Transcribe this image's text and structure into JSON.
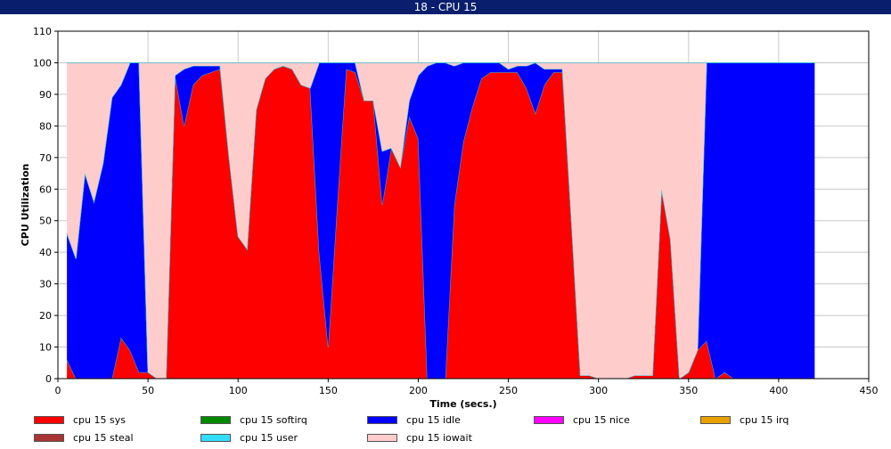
{
  "window": {
    "title": "18 - CPU 15"
  },
  "chart_data": {
    "type": "area",
    "stacked": true,
    "title": "18 - CPU 15",
    "xlabel": "Time (secs.)",
    "ylabel": "CPU Utilization",
    "xlim": [
      0,
      450
    ],
    "ylim": [
      0,
      110
    ],
    "xticks": [
      0,
      50,
      100,
      150,
      200,
      250,
      300,
      350,
      400,
      450
    ],
    "yticks": [
      0,
      10,
      20,
      30,
      40,
      50,
      60,
      70,
      80,
      90,
      100,
      110
    ],
    "grid": true,
    "legend_position": "bottom",
    "x": [
      5,
      10,
      15,
      20,
      25,
      30,
      35,
      40,
      45,
      50,
      55,
      60,
      65,
      70,
      75,
      80,
      85,
      90,
      95,
      100,
      105,
      110,
      115,
      120,
      125,
      130,
      135,
      140,
      145,
      150,
      155,
      160,
      165,
      170,
      175,
      180,
      185,
      190,
      195,
      200,
      205,
      210,
      215,
      220,
      225,
      230,
      235,
      240,
      245,
      250,
      255,
      260,
      265,
      270,
      275,
      280,
      285,
      290,
      295,
      300,
      305,
      310,
      315,
      320,
      325,
      330,
      335,
      340,
      345,
      350,
      355,
      360,
      365,
      370,
      375,
      380,
      385,
      390,
      395,
      400,
      405,
      410,
      415,
      420
    ],
    "series": [
      {
        "name": "cpu 15 sys",
        "color": "#ff0000",
        "values": [
          6,
          0,
          0,
          0,
          0,
          0,
          13,
          9,
          2,
          2,
          0,
          0,
          96,
          80,
          93,
          96,
          97,
          98,
          70,
          45,
          41,
          85,
          95,
          98,
          99,
          98,
          93,
          92,
          40,
          10,
          55,
          98,
          97,
          88,
          88,
          55,
          73,
          67,
          83,
          76,
          0,
          0,
          0,
          55,
          75,
          86,
          95,
          97,
          97,
          97,
          97,
          92,
          84,
          93,
          97,
          97,
          50,
          1,
          1,
          0,
          0,
          0,
          0,
          1,
          1,
          1,
          60,
          44,
          0,
          2,
          9,
          12,
          0,
          2,
          0,
          0,
          0,
          0,
          0,
          0,
          0,
          0,
          0,
          0
        ]
      },
      {
        "name": "cpu 15 softirq",
        "color": "#008800",
        "values": [
          0,
          0,
          0,
          0,
          0,
          0,
          0,
          0,
          0,
          0,
          0,
          0,
          0,
          0,
          0,
          0,
          0,
          0,
          0,
          0,
          0,
          0,
          0,
          0,
          0,
          0,
          0,
          0,
          0,
          0,
          0,
          0,
          0,
          0,
          0,
          0,
          0,
          0,
          0,
          0,
          0,
          0,
          0,
          0,
          0,
          0,
          0,
          0,
          0,
          0,
          0,
          0,
          0,
          0,
          0,
          0,
          0,
          0,
          0,
          0,
          0,
          0,
          0,
          0,
          0,
          0,
          0,
          0,
          0,
          0,
          0,
          0,
          0,
          0,
          0,
          0,
          0,
          0,
          0,
          0,
          0,
          0,
          0,
          0
        ]
      },
      {
        "name": "cpu 15 idle",
        "color": "#0000ff",
        "values": [
          40,
          38,
          65,
          56,
          68,
          89,
          80,
          91,
          98,
          0,
          0,
          0,
          0,
          18,
          6,
          3,
          2,
          1,
          0,
          0,
          0,
          0,
          0,
          0,
          0,
          0,
          0,
          0,
          60,
          90,
          45,
          2,
          3,
          0,
          0,
          17,
          0,
          0,
          5,
          20,
          99,
          100,
          100,
          44,
          25,
          14,
          5,
          3,
          3,
          1,
          2,
          7,
          16,
          5,
          1,
          1,
          0,
          0,
          0,
          0,
          0,
          0,
          0,
          0,
          0,
          0,
          0,
          0,
          0,
          0,
          0,
          88,
          100,
          98,
          100,
          100,
          100,
          100,
          100,
          100,
          100,
          100,
          100,
          100
        ]
      },
      {
        "name": "cpu 15 nice",
        "color": "#ff00ff",
        "values": [
          0,
          0,
          0,
          0,
          0,
          0,
          0,
          0,
          0,
          0,
          0,
          0,
          0,
          0,
          0,
          0,
          0,
          0,
          0,
          0,
          0,
          0,
          0,
          0,
          0,
          0,
          0,
          0,
          0,
          0,
          0,
          0,
          0,
          0,
          0,
          0,
          0,
          0,
          0,
          0,
          0,
          0,
          0,
          0,
          0,
          0,
          0,
          0,
          0,
          0,
          0,
          0,
          0,
          0,
          0,
          0,
          0,
          0,
          0,
          0,
          0,
          0,
          0,
          0,
          0,
          0,
          0,
          0,
          0,
          0,
          0,
          0,
          0,
          0,
          0,
          0,
          0,
          0,
          0,
          0,
          0,
          0,
          0,
          0
        ]
      },
      {
        "name": "cpu 15 irq",
        "color": "#e8a000",
        "values": [
          0,
          0,
          0,
          0,
          0,
          0,
          0,
          0,
          0,
          0,
          0,
          0,
          0,
          0,
          0,
          0,
          0,
          0,
          0,
          0,
          0,
          0,
          0,
          0,
          0,
          0,
          0,
          0,
          0,
          0,
          0,
          0,
          0,
          0,
          0,
          0,
          0,
          0,
          0,
          0,
          0,
          0,
          0,
          0,
          0,
          0,
          0,
          0,
          0,
          0,
          0,
          0,
          0,
          0,
          0,
          0,
          0,
          0,
          0,
          0,
          0,
          0,
          0,
          0,
          0,
          0,
          0,
          0,
          0,
          0,
          0,
          0,
          0,
          0,
          0,
          0,
          0,
          0,
          0,
          0,
          0,
          0,
          0,
          0
        ]
      },
      {
        "name": "cpu 15 steal",
        "color": "#aa3333",
        "values": [
          0,
          0,
          0,
          0,
          0,
          0,
          0,
          0,
          0,
          0,
          0,
          0,
          0,
          0,
          0,
          0,
          0,
          0,
          0,
          0,
          0,
          0,
          0,
          0,
          0,
          0,
          0,
          0,
          0,
          0,
          0,
          0,
          0,
          0,
          0,
          0,
          0,
          0,
          0,
          0,
          0,
          0,
          0,
          0,
          0,
          0,
          0,
          0,
          0,
          0,
          0,
          0,
          0,
          0,
          0,
          0,
          0,
          0,
          0,
          0,
          0,
          0,
          0,
          0,
          0,
          0,
          0,
          0,
          0,
          0,
          0,
          0,
          0,
          0,
          0,
          0,
          0,
          0,
          0,
          0,
          0,
          0,
          0,
          0
        ]
      },
      {
        "name": "cpu 15 user",
        "color": "#33ddff",
        "values": [
          0,
          0,
          0,
          0,
          0,
          0,
          0,
          0,
          0,
          0,
          0,
          0,
          0,
          0,
          0,
          0,
          0,
          0,
          0,
          0,
          0,
          0,
          0,
          0,
          0,
          0,
          0,
          0,
          0,
          0,
          0,
          0,
          0,
          0,
          0,
          0,
          0,
          0,
          0,
          0,
          0,
          0,
          0,
          0,
          0,
          0,
          0,
          0,
          0,
          0,
          0,
          0,
          0,
          0,
          0,
          0,
          0,
          0,
          0,
          0,
          0,
          0,
          0,
          0,
          0,
          0,
          0,
          0,
          0,
          0,
          0,
          0,
          0,
          0,
          0,
          0,
          0,
          0,
          0,
          0,
          0,
          0,
          0,
          0
        ]
      },
      {
        "name": "cpu 15 iowait",
        "color": "#ffcccc",
        "values": [
          54,
          62,
          35,
          44,
          32,
          11,
          7,
          0,
          0,
          98,
          100,
          100,
          4,
          2,
          1,
          1,
          1,
          1,
          30,
          55,
          59,
          15,
          5,
          2,
          1,
          2,
          7,
          8,
          0,
          0,
          0,
          0,
          0,
          12,
          12,
          28,
          27,
          33,
          12,
          4,
          1,
          0,
          0,
          1,
          0,
          0,
          0,
          0,
          0,
          2,
          1,
          1,
          0,
          2,
          2,
          2,
          50,
          99,
          99,
          100,
          100,
          100,
          100,
          99,
          99,
          99,
          40,
          56,
          100,
          98,
          91,
          0,
          0,
          0,
          0,
          0,
          0,
          0,
          0,
          0,
          0,
          0,
          0,
          0
        ]
      }
    ]
  }
}
